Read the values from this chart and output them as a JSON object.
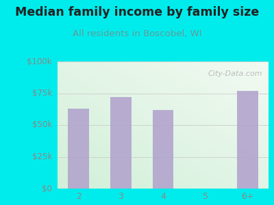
{
  "title": "Median family income by family size",
  "subtitle": "All residents in Boscobel, WI",
  "categories": [
    "2",
    "3",
    "4",
    "5",
    "6+"
  ],
  "values": [
    63000,
    72000,
    62000,
    0,
    77000
  ],
  "bar_color": "#b0a0cc",
  "background_outer": "#00ecec",
  "title_color": "#222222",
  "subtitle_color": "#669999",
  "tick_color": "#888888",
  "ylabel_ticks": [
    "$0",
    "$25k",
    "$50k",
    "$75k",
    "$100k"
  ],
  "ylabel_values": [
    0,
    25000,
    50000,
    75000,
    100000
  ],
  "ylim": [
    0,
    100000
  ],
  "watermark": "City-Data.com",
  "title_fontsize": 12.5,
  "subtitle_fontsize": 9.5
}
